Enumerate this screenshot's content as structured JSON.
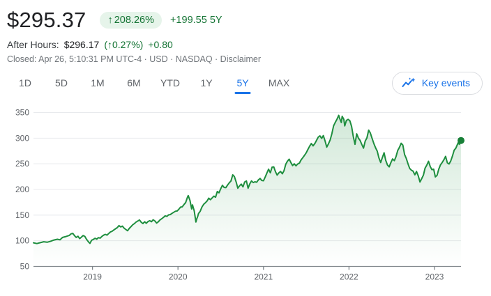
{
  "header": {
    "price": "$295.37",
    "badge_arrow": "↑",
    "change_percent": "208.26%",
    "change_absolute": "+199.55 5Y",
    "after_hours_label": "After Hours:",
    "after_hours_price": "$296.17",
    "after_hours_change_percent": "(↑0.27%)",
    "after_hours_change_abs": "+0.80",
    "status_prefix": "Closed: Apr 26, 5:10:31 PM UTC-4 · USD · NASDAQ ·",
    "disclaimer_label": "Disclaimer"
  },
  "tabs": [
    {
      "label": "1D",
      "active": false
    },
    {
      "label": "5D",
      "active": false
    },
    {
      "label": "1M",
      "active": false
    },
    {
      "label": "6M",
      "active": false
    },
    {
      "label": "YTD",
      "active": false
    },
    {
      "label": "1Y",
      "active": false
    },
    {
      "label": "5Y",
      "active": true
    },
    {
      "label": "MAX",
      "active": false
    }
  ],
  "key_events": {
    "label": "Key events"
  },
  "colors": {
    "accent_blue": "#1a73e8",
    "green_text": "#137333",
    "badge_bg": "#e6f4ea",
    "line_green": "#1e8e3e"
  },
  "chart_data": {
    "type": "area",
    "ylim": [
      50,
      350
    ],
    "y_ticks": [
      50,
      100,
      150,
      200,
      250,
      300,
      350
    ],
    "x_tick_labels": [
      "2019",
      "2020",
      "2021",
      "2022",
      "2023"
    ],
    "x_tick_t": [
      0.69,
      1.69,
      2.69,
      3.69,
      4.69
    ],
    "x_range_t": [
      0,
      5
    ],
    "grid": true,
    "legend": "none",
    "line_color": "#1e8e3e",
    "dot_color": "#188038",
    "axis_color": "#80868b",
    "grid_color": "#e8eaed",
    "label_color": "#5f6368",
    "last_value": 295.37,
    "series": [
      {
        "name": "price",
        "points": [
          [
            0,
            96
          ],
          [
            0.04,
            94.5
          ],
          [
            0.08,
            96.3
          ],
          [
            0.12,
            98
          ],
          [
            0.16,
            97.1
          ],
          [
            0.2,
            99
          ],
          [
            0.24,
            101.5
          ],
          [
            0.28,
            103
          ],
          [
            0.31,
            101.8
          ],
          [
            0.34,
            106.5
          ],
          [
            0.38,
            108.3
          ],
          [
            0.42,
            110.5
          ],
          [
            0.44,
            113.5
          ],
          [
            0.46,
            114.3
          ],
          [
            0.48,
            110
          ],
          [
            0.5,
            106.5
          ],
          [
            0.52,
            108.8
          ],
          [
            0.54,
            104.2
          ],
          [
            0.56,
            107
          ],
          [
            0.58,
            110.2
          ],
          [
            0.6,
            108.5
          ],
          [
            0.62,
            103
          ],
          [
            0.64,
            98.5
          ],
          [
            0.66,
            94.8
          ],
          [
            0.68,
            101
          ],
          [
            0.7,
            102.5
          ],
          [
            0.72,
            104.8
          ],
          [
            0.74,
            103.2
          ],
          [
            0.76,
            106
          ],
          [
            0.78,
            105.1
          ],
          [
            0.8,
            108.5
          ],
          [
            0.82,
            110.8
          ],
          [
            0.84,
            112.5
          ],
          [
            0.86,
            111
          ],
          [
            0.88,
            114.2
          ],
          [
            0.9,
            117
          ],
          [
            0.92,
            118.5
          ],
          [
            0.94,
            121
          ],
          [
            0.96,
            123.5
          ],
          [
            0.98,
            125.5
          ],
          [
            1,
            129.5
          ],
          [
            1.02,
            127
          ],
          [
            1.04,
            128.5
          ],
          [
            1.06,
            124.5
          ],
          [
            1.08,
            122
          ],
          [
            1.1,
            119.5
          ],
          [
            1.12,
            124
          ],
          [
            1.14,
            127.5
          ],
          [
            1.16,
            131
          ],
          [
            1.18,
            133.5
          ],
          [
            1.2,
            136.5
          ],
          [
            1.22,
            138.5
          ],
          [
            1.24,
            140.5
          ],
          [
            1.26,
            136
          ],
          [
            1.28,
            133.5
          ],
          [
            1.3,
            137
          ],
          [
            1.32,
            134
          ],
          [
            1.34,
            137.5
          ],
          [
            1.36,
            139
          ],
          [
            1.38,
            137
          ],
          [
            1.4,
            141
          ],
          [
            1.42,
            138.5
          ],
          [
            1.44,
            134.5
          ],
          [
            1.46,
            137
          ],
          [
            1.48,
            140.5
          ],
          [
            1.5,
            143
          ],
          [
            1.52,
            145.5
          ],
          [
            1.54,
            148.5
          ],
          [
            1.56,
            147.5
          ],
          [
            1.58,
            150.5
          ],
          [
            1.6,
            151
          ],
          [
            1.62,
            153.5
          ],
          [
            1.64,
            155.5
          ],
          [
            1.66,
            157.5
          ],
          [
            1.68,
            158
          ],
          [
            1.7,
            161.5
          ],
          [
            1.72,
            165.5
          ],
          [
            1.74,
            166
          ],
          [
            1.76,
            170.5
          ],
          [
            1.78,
            174.5
          ],
          [
            1.8,
            184.5
          ],
          [
            1.81,
            188
          ],
          [
            1.83,
            178.5
          ],
          [
            1.85,
            162
          ],
          [
            1.86,
            170
          ],
          [
            1.88,
            158
          ],
          [
            1.9,
            136.5
          ],
          [
            1.91,
            143
          ],
          [
            1.92,
            147
          ],
          [
            1.93,
            153
          ],
          [
            1.95,
            157.5
          ],
          [
            1.97,
            165.5
          ],
          [
            1.99,
            171
          ],
          [
            2.01,
            174
          ],
          [
            2.03,
            177.5
          ],
          [
            2.05,
            183
          ],
          [
            2.07,
            180
          ],
          [
            2.09,
            183.5
          ],
          [
            2.11,
            187
          ],
          [
            2.13,
            185
          ],
          [
            2.15,
            196
          ],
          [
            2.17,
            193.5
          ],
          [
            2.19,
            201.5
          ],
          [
            2.21,
            208
          ],
          [
            2.23,
            204
          ],
          [
            2.25,
            203.5
          ],
          [
            2.27,
            208.5
          ],
          [
            2.29,
            213
          ],
          [
            2.31,
            216.5
          ],
          [
            2.33,
            228.5
          ],
          [
            2.35,
            225
          ],
          [
            2.37,
            214.5
          ],
          [
            2.39,
            202.5
          ],
          [
            2.41,
            207
          ],
          [
            2.43,
            210.5
          ],
          [
            2.45,
            205
          ],
          [
            2.47,
            214.5
          ],
          [
            2.49,
            216.5
          ],
          [
            2.51,
            202.5
          ],
          [
            2.53,
            211
          ],
          [
            2.55,
            216.5
          ],
          [
            2.57,
            213.5
          ],
          [
            2.59,
            215
          ],
          [
            2.61,
            214
          ],
          [
            2.63,
            218.5
          ],
          [
            2.65,
            221.5
          ],
          [
            2.67,
            217.5
          ],
          [
            2.69,
            217
          ],
          [
            2.71,
            224
          ],
          [
            2.73,
            232
          ],
          [
            2.75,
            239.5
          ],
          [
            2.77,
            232.5
          ],
          [
            2.79,
            243.5
          ],
          [
            2.81,
            244
          ],
          [
            2.83,
            234.5
          ],
          [
            2.85,
            228
          ],
          [
            2.87,
            232.5
          ],
          [
            2.89,
            235
          ],
          [
            2.91,
            230.5
          ],
          [
            2.93,
            236.5
          ],
          [
            2.95,
            249
          ],
          [
            2.97,
            255
          ],
          [
            2.99,
            259
          ],
          [
            3.01,
            252.5
          ],
          [
            3.03,
            246.5
          ],
          [
            3.05,
            250
          ],
          [
            3.07,
            246
          ],
          [
            3.09,
            249.5
          ],
          [
            3.11,
            251.5
          ],
          [
            3.13,
            257.5
          ],
          [
            3.15,
            262
          ],
          [
            3.17,
            266.5
          ],
          [
            3.19,
            271.5
          ],
          [
            3.21,
            278
          ],
          [
            3.23,
            284.5
          ],
          [
            3.25,
            289.5
          ],
          [
            3.27,
            285
          ],
          [
            3.29,
            289.5
          ],
          [
            3.31,
            295.5
          ],
          [
            3.33,
            302
          ],
          [
            3.35,
            304.5
          ],
          [
            3.37,
            299.5
          ],
          [
            3.39,
            305
          ],
          [
            3.41,
            294.5
          ],
          [
            3.43,
            282.5
          ],
          [
            3.45,
            289
          ],
          [
            3.47,
            296.5
          ],
          [
            3.49,
            309
          ],
          [
            3.51,
            324
          ],
          [
            3.53,
            331
          ],
          [
            3.55,
            337
          ],
          [
            3.57,
            344.5
          ],
          [
            3.58,
            339
          ],
          [
            3.6,
            330.5
          ],
          [
            3.61,
            342.5
          ],
          [
            3.63,
            336.5
          ],
          [
            3.64,
            324
          ],
          [
            3.66,
            334.5
          ],
          [
            3.68,
            336.5
          ],
          [
            3.7,
            334
          ],
          [
            3.72,
            323
          ],
          [
            3.74,
            303.5
          ],
          [
            3.76,
            288
          ],
          [
            3.78,
            308.5
          ],
          [
            3.8,
            300
          ],
          [
            3.82,
            295.5
          ],
          [
            3.84,
            287.5
          ],
          [
            3.86,
            280.5
          ],
          [
            3.88,
            294.5
          ],
          [
            3.9,
            300.5
          ],
          [
            3.92,
            315.5
          ],
          [
            3.94,
            310
          ],
          [
            3.96,
            299.5
          ],
          [
            3.98,
            290
          ],
          [
            4,
            281.5
          ],
          [
            4.02,
            274.5
          ],
          [
            4.04,
            261.5
          ],
          [
            4.06,
            252.5
          ],
          [
            4.08,
            262
          ],
          [
            4.1,
            271.5
          ],
          [
            4.12,
            256.5
          ],
          [
            4.14,
            247.5
          ],
          [
            4.16,
            244
          ],
          [
            4.18,
            252.5
          ],
          [
            4.2,
            259.5
          ],
          [
            4.22,
            256
          ],
          [
            4.24,
            264
          ],
          [
            4.26,
            276
          ],
          [
            4.28,
            282
          ],
          [
            4.3,
            290
          ],
          [
            4.32,
            286.5
          ],
          [
            4.34,
            268
          ],
          [
            4.36,
            260.5
          ],
          [
            4.38,
            250
          ],
          [
            4.4,
            241
          ],
          [
            4.42,
            237.5
          ],
          [
            4.44,
            235.5
          ],
          [
            4.46,
            228.5
          ],
          [
            4.48,
            235
          ],
          [
            4.5,
            226.5
          ],
          [
            4.52,
            214.5
          ],
          [
            4.54,
            221
          ],
          [
            4.56,
            228
          ],
          [
            4.58,
            241.5
          ],
          [
            4.6,
            247.5
          ],
          [
            4.62,
            255
          ],
          [
            4.64,
            244.5
          ],
          [
            4.66,
            238.5
          ],
          [
            4.68,
            239.5
          ],
          [
            4.7,
            224.5
          ],
          [
            4.72,
            227.5
          ],
          [
            4.74,
            239.5
          ],
          [
            4.76,
            248
          ],
          [
            4.78,
            252.5
          ],
          [
            4.8,
            258
          ],
          [
            4.82,
            264.5
          ],
          [
            4.84,
            252
          ],
          [
            4.86,
            249.5
          ],
          [
            4.88,
            255.5
          ],
          [
            4.9,
            265
          ],
          [
            4.92,
            276.5
          ],
          [
            4.94,
            280.5
          ],
          [
            4.96,
            288.5
          ],
          [
            4.97,
            292
          ],
          [
            4.98,
            288
          ],
          [
            5,
            295.37
          ]
        ]
      }
    ]
  }
}
